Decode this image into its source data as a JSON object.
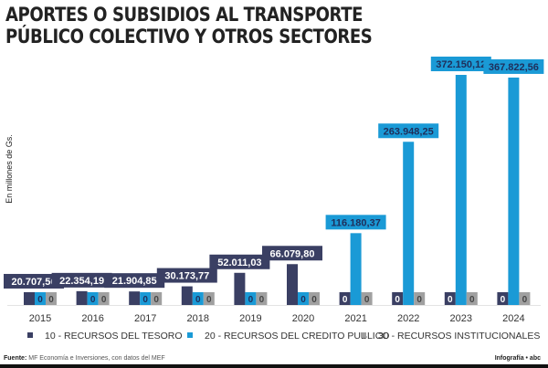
{
  "title_lines": [
    "APORTES O SUBSIDIOS AL TRANSPORTE",
    "PÚBLICO COLECTIVO Y OTROS SECTORES"
  ],
  "source_label": "Fuente:",
  "source_text": "MF Economía e Inversiones, con datos del MEF",
  "credit": "Infografía • abc",
  "chart_data": {
    "type": "bar",
    "title": "APORTES O SUBSIDIOS AL TRANSPORTE PÚBLICO COLECTIVO Y OTROS SECTORES",
    "ylabel": "En millones de Gs.",
    "xlabel": "",
    "categories": [
      "2015",
      "2016",
      "2017",
      "2018",
      "2019",
      "2020",
      "2021",
      "2022",
      "2023",
      "2024"
    ],
    "series": [
      {
        "name": "10 - RECURSOS DEL TESORO",
        "color": "#3a3f63",
        "values": [
          20707.56,
          22354.19,
          21904.85,
          30173.77,
          52011.03,
          66079.8,
          0,
          0,
          0,
          0
        ],
        "labels": [
          "20.707,56",
          "22.354,19",
          "21.904,85",
          "30.173,77",
          "52.011,03",
          "66.079,80",
          "0",
          "0",
          "0",
          "0"
        ]
      },
      {
        "name": "20 - RECURSOS DEL CREDITO PUBLICO",
        "color": "#1a9ad6",
        "values": [
          0,
          0,
          0,
          0,
          0,
          0,
          116180.37,
          263948.25,
          372150.12,
          367822.56
        ],
        "labels": [
          "0",
          "0",
          "0",
          "0",
          "0",
          "0",
          "116.180,37",
          "263.948,25",
          "372.150,12",
          "367.822,56"
        ]
      },
      {
        "name": "30 - RECURSOS INSTITUCIONALES",
        "color": "#a0a0a0",
        "values": [
          0,
          0,
          0,
          0,
          0,
          0,
          0,
          0,
          0,
          0
        ],
        "labels": [
          "0",
          "0",
          "0",
          "0",
          "0",
          "0",
          "0",
          "0",
          "0",
          "0"
        ]
      }
    ],
    "ylim": [
      0,
      380000
    ],
    "grid": false,
    "legend": "bottom"
  }
}
